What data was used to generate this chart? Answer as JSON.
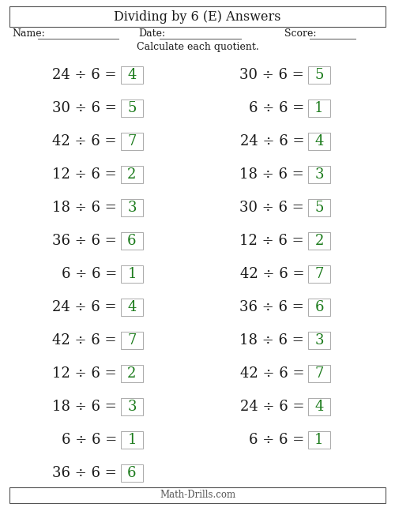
{
  "title": "Dividing by 6 (E) Answers",
  "name_label": "Name:",
  "date_label": "Date:",
  "score_label": "Score:",
  "instruction": "Calculate each quotient.",
  "footer": "Math-Drills.com",
  "left_column": [
    {
      "problem": "24 ÷ 6 =",
      "answer": "4"
    },
    {
      "problem": "30 ÷ 6 =",
      "answer": "5"
    },
    {
      "problem": "42 ÷ 6 =",
      "answer": "7"
    },
    {
      "problem": "12 ÷ 6 =",
      "answer": "2"
    },
    {
      "problem": "18 ÷ 6 =",
      "answer": "3"
    },
    {
      "problem": "36 ÷ 6 =",
      "answer": "6"
    },
    {
      "problem": "6 ÷ 6 =",
      "answer": "1"
    },
    {
      "problem": "24 ÷ 6 =",
      "answer": "4"
    },
    {
      "problem": "42 ÷ 6 =",
      "answer": "7"
    },
    {
      "problem": "12 ÷ 6 =",
      "answer": "2"
    },
    {
      "problem": "18 ÷ 6 =",
      "answer": "3"
    },
    {
      "problem": "6 ÷ 6 =",
      "answer": "1"
    },
    {
      "problem": "36 ÷ 6 =",
      "answer": "6"
    }
  ],
  "right_column": [
    {
      "problem": "30 ÷ 6 =",
      "answer": "5"
    },
    {
      "problem": "6 ÷ 6 =",
      "answer": "1"
    },
    {
      "problem": "24 ÷ 6 =",
      "answer": "4"
    },
    {
      "problem": "18 ÷ 6 =",
      "answer": "3"
    },
    {
      "problem": "30 ÷ 6 =",
      "answer": "5"
    },
    {
      "problem": "12 ÷ 6 =",
      "answer": "2"
    },
    {
      "problem": "42 ÷ 6 =",
      "answer": "7"
    },
    {
      "problem": "36 ÷ 6 =",
      "answer": "6"
    },
    {
      "problem": "18 ÷ 6 =",
      "answer": "3"
    },
    {
      "problem": "42 ÷ 6 =",
      "answer": "7"
    },
    {
      "problem": "24 ÷ 6 =",
      "answer": "4"
    },
    {
      "problem": "6 ÷ 6 =",
      "answer": "1"
    }
  ],
  "answer_color": "#1a7a1a",
  "text_color": "#1a1a1a",
  "background_color": "#ffffff",
  "border_color": "#555555",
  "ans_border_color": "#aaaaaa",
  "title_fontsize": 11.5,
  "problem_fontsize": 13,
  "answer_fontsize": 13,
  "header_fontsize": 9,
  "instr_fontsize": 9,
  "footer_fontsize": 8.5
}
